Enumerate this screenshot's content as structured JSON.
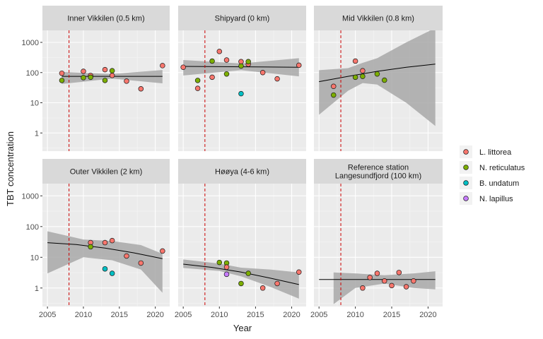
{
  "chart_data": {
    "type": "scatter",
    "ylabel": "TBT concentration",
    "xlabel": "Year",
    "yscale": "log10",
    "ylim": [
      0.25,
      2500
    ],
    "xlim": [
      2004.3,
      2022.0
    ],
    "x_ticks": [
      "2005",
      "2010",
      "2015",
      "2020"
    ],
    "x_tick_values": [
      2005,
      2010,
      2015,
      2020
    ],
    "y_ticks": [
      "1",
      "10",
      "100",
      "1000"
    ],
    "y_tick_values": [
      1,
      10,
      100,
      1000
    ],
    "reference_line": {
      "x": 2008,
      "color": "#cc0000",
      "style": "dashed"
    },
    "legend": {
      "placement": "right",
      "entries": [
        {
          "name": "L. littorea",
          "color": "#f8766d"
        },
        {
          "name": "N. reticulatus",
          "color": "#7cae00"
        },
        {
          "name": "B. undatum",
          "color": "#00bfc4"
        },
        {
          "name": "N. lapillus",
          "color": "#c77cff"
        }
      ]
    },
    "panels": [
      {
        "title_lines": [
          "Inner Vikkilen (0.5 km)"
        ],
        "trend": {
          "x": [
            2007,
            2021
          ],
          "y": [
            75,
            75
          ]
        },
        "band": {
          "x": [
            2007,
            2014,
            2021
          ],
          "upper": [
            105,
            90,
            122
          ],
          "lower": [
            42,
            63,
            44
          ]
        },
        "points": [
          {
            "x": 2007,
            "y": 95,
            "s": 0
          },
          {
            "x": 2007,
            "y": 55,
            "s": 1
          },
          {
            "x": 2010,
            "y": 110,
            "s": 0
          },
          {
            "x": 2010,
            "y": 68,
            "s": 1
          },
          {
            "x": 2011,
            "y": 80,
            "s": 0
          },
          {
            "x": 2011,
            "y": 70,
            "s": 1
          },
          {
            "x": 2013,
            "y": 125,
            "s": 0
          },
          {
            "x": 2013,
            "y": 55,
            "s": 1
          },
          {
            "x": 2014,
            "y": 80,
            "s": 0
          },
          {
            "x": 2014,
            "y": 115,
            "s": 1
          },
          {
            "x": 2016,
            "y": 52,
            "s": 0
          },
          {
            "x": 2018,
            "y": 29,
            "s": 0
          },
          {
            "x": 2021,
            "y": 170,
            "s": 0
          }
        ]
      },
      {
        "title_lines": [
          "Shipyard (0 km)"
        ],
        "trend": {
          "x": [
            2005,
            2021
          ],
          "y": [
            160,
            150
          ]
        },
        "band": {
          "x": [
            2005,
            2013,
            2021
          ],
          "upper": [
            260,
            200,
            300
          ],
          "lower": [
            80,
            120,
            75
          ]
        },
        "points": [
          {
            "x": 2005,
            "y": 150,
            "s": 0
          },
          {
            "x": 2007,
            "y": 30,
            "s": 0
          },
          {
            "x": 2007,
            "y": 55,
            "s": 1
          },
          {
            "x": 2009,
            "y": 70,
            "s": 0
          },
          {
            "x": 2009,
            "y": 240,
            "s": 1
          },
          {
            "x": 2010,
            "y": 500,
            "s": 0
          },
          {
            "x": 2011,
            "y": 260,
            "s": 0
          },
          {
            "x": 2011,
            "y": 90,
            "s": 1
          },
          {
            "x": 2013,
            "y": 230,
            "s": 0
          },
          {
            "x": 2013,
            "y": 165,
            "s": 1
          },
          {
            "x": 2013,
            "y": 20,
            "s": 2
          },
          {
            "x": 2014,
            "y": 190,
            "s": 0
          },
          {
            "x": 2014,
            "y": 230,
            "s": 1
          },
          {
            "x": 2016,
            "y": 100,
            "s": 0
          },
          {
            "x": 2018,
            "y": 62,
            "s": 0
          },
          {
            "x": 2021,
            "y": 175,
            "s": 0
          }
        ]
      },
      {
        "title_lines": [
          "Mid Vikkilen (0.8 km)"
        ],
        "trend": {
          "x": [
            2005,
            2009,
            2013,
            2017,
            2021
          ],
          "y": [
            50,
            75,
            110,
            150,
            190
          ]
        },
        "band": {
          "x": [
            2005,
            2009,
            2011,
            2013,
            2017,
            2021
          ],
          "upper": [
            120,
            140,
            210,
            300,
            1000,
            3000
          ],
          "lower": [
            4,
            25,
            45,
            40,
            10,
            1.7
          ]
        },
        "points": [
          {
            "x": 2007,
            "y": 35,
            "s": 0
          },
          {
            "x": 2007,
            "y": 18,
            "s": 1
          },
          {
            "x": 2010,
            "y": 240,
            "s": 0
          },
          {
            "x": 2010,
            "y": 70,
            "s": 1
          },
          {
            "x": 2011,
            "y": 115,
            "s": 0
          },
          {
            "x": 2011,
            "y": 75,
            "s": 1
          },
          {
            "x": 2013,
            "y": 90,
            "s": 1
          },
          {
            "x": 2014,
            "y": 56,
            "s": 1
          }
        ]
      },
      {
        "title_lines": [
          "Outer Vikkilen (2 km)"
        ],
        "trend": {
          "x": [
            2005,
            2009,
            2013,
            2017,
            2021
          ],
          "y": [
            30,
            26,
            20,
            14,
            9
          ]
        },
        "band": {
          "x": [
            2005,
            2010,
            2014,
            2018,
            2021
          ],
          "upper": [
            70,
            38,
            34,
            25,
            13
          ],
          "lower": [
            3,
            10,
            8,
            4,
            0.7
          ]
        },
        "points": [
          {
            "x": 2011,
            "y": 30,
            "s": 0
          },
          {
            "x": 2011,
            "y": 22,
            "s": 1
          },
          {
            "x": 2013,
            "y": 30,
            "s": 0
          },
          {
            "x": 2013,
            "y": 4.2,
            "s": 2
          },
          {
            "x": 2014,
            "y": 35,
            "s": 0
          },
          {
            "x": 2014,
            "y": 3.0,
            "s": 2
          },
          {
            "x": 2016,
            "y": 11,
            "s": 0
          },
          {
            "x": 2018,
            "y": 6.5,
            "s": 0
          },
          {
            "x": 2021,
            "y": 16,
            "s": 0
          }
        ]
      },
      {
        "title_lines": [
          "Høøya (4-6 km)"
        ],
        "trend": {
          "x": [
            2005,
            2009,
            2013,
            2017,
            2021
          ],
          "y": [
            6,
            4.7,
            3.3,
            2.1,
            1.3
          ]
        },
        "band": {
          "x": [
            2005,
            2010,
            2013,
            2017,
            2021
          ],
          "upper": [
            8.5,
            6.2,
            4.6,
            4.0,
            3.2
          ],
          "lower": [
            4.5,
            3.6,
            2.4,
            1.1,
            0.45
          ]
        },
        "points": [
          {
            "x": 2010,
            "y": 6.8,
            "s": 1
          },
          {
            "x": 2011,
            "y": 6.5,
            "s": 1
          },
          {
            "x": 2011,
            "y": 4.8,
            "s": 0
          },
          {
            "x": 2011,
            "y": 2.8,
            "s": 3
          },
          {
            "x": 2013,
            "y": 1.4,
            "s": 1
          },
          {
            "x": 2014,
            "y": 3.0,
            "s": 1
          },
          {
            "x": 2016,
            "y": 1.0,
            "s": 0
          },
          {
            "x": 2018,
            "y": 1.4,
            "s": 0
          },
          {
            "x": 2021,
            "y": 3.3,
            "s": 0
          }
        ]
      },
      {
        "title_lines": [
          "Reference station",
          "Langesundfjord (100 km)"
        ],
        "trend": {
          "x": [
            2005,
            2021
          ],
          "y": [
            1.9,
            1.9
          ]
        },
        "band": {
          "x": [
            2007,
            2010,
            2014,
            2018,
            2021
          ],
          "upper": [
            3.2,
            3.0,
            2.6,
            3.0,
            3.5
          ],
          "lower": [
            0.3,
            1.0,
            1.4,
            1.0,
            0.9
          ]
        },
        "points": [
          {
            "x": 2011,
            "y": 1.0,
            "s": 0
          },
          {
            "x": 2012,
            "y": 2.2,
            "s": 0
          },
          {
            "x": 2013,
            "y": 3.0,
            "s": 0
          },
          {
            "x": 2014,
            "y": 1.7,
            "s": 0
          },
          {
            "x": 2015,
            "y": 1.2,
            "s": 0
          },
          {
            "x": 2016,
            "y": 3.2,
            "s": 0
          },
          {
            "x": 2017,
            "y": 1.1,
            "s": 0
          },
          {
            "x": 2018,
            "y": 1.7,
            "s": 0
          }
        ]
      }
    ]
  }
}
